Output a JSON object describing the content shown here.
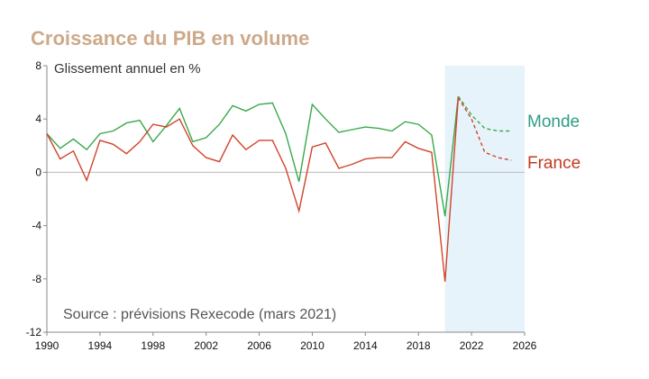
{
  "colors": {
    "title": "#cda98a",
    "monde": "#3aa84b",
    "france": "#d1442a",
    "monde_label": "#2e9e85",
    "france_label": "#c23a24",
    "forecast_shade": "#e7f3fb",
    "axis": "#888888",
    "zero_line": "#bbbbbb"
  },
  "chart_data": {
    "type": "line",
    "title": "Croissance du PIB en volume",
    "subtitle": "Glissement annuel en %",
    "source": "Source : prévisions Rexecode (mars 2021)",
    "xlim": [
      1990,
      2026
    ],
    "ylim": [
      -12,
      8
    ],
    "x_ticks": [
      1990,
      1994,
      1998,
      2002,
      2006,
      2010,
      2014,
      2018,
      2022,
      2026
    ],
    "y_ticks": [
      8,
      4,
      0,
      -4,
      -8,
      -12
    ],
    "forecast_region": [
      2020,
      2026
    ],
    "series": [
      {
        "name": "Monde",
        "actual": {
          "x": [
            1990,
            1991,
            1992,
            1993,
            1994,
            1995,
            1996,
            1997,
            1998,
            1999,
            2000,
            2001,
            2002,
            2003,
            2004,
            2005,
            2006,
            2007,
            2008,
            2009,
            2010,
            2011,
            2012,
            2013,
            2014,
            2015,
            2016,
            2017,
            2018,
            2019,
            2020,
            2021
          ],
          "y": [
            2.9,
            1.8,
            2.5,
            1.7,
            2.9,
            3.1,
            3.7,
            3.9,
            2.3,
            3.5,
            4.8,
            2.3,
            2.6,
            3.6,
            5.0,
            4.6,
            5.1,
            5.2,
            2.9,
            -0.7,
            5.1,
            4.0,
            3.0,
            3.2,
            3.4,
            3.3,
            3.1,
            3.8,
            3.6,
            2.8,
            -3.3,
            5.7
          ]
        },
        "forecast": {
          "x": [
            2021,
            2022,
            2023,
            2024,
            2025
          ],
          "y": [
            5.7,
            4.3,
            3.3,
            3.1,
            3.1
          ]
        }
      },
      {
        "name": "France",
        "actual": {
          "x": [
            1990,
            1991,
            1992,
            1993,
            1994,
            1995,
            1996,
            1997,
            1998,
            1999,
            2000,
            2001,
            2002,
            2003,
            2004,
            2005,
            2006,
            2007,
            2008,
            2009,
            2010,
            2011,
            2012,
            2013,
            2014,
            2015,
            2016,
            2017,
            2018,
            2019,
            2020,
            2021
          ],
          "y": [
            2.9,
            1.0,
            1.6,
            -0.6,
            2.4,
            2.1,
            1.4,
            2.3,
            3.6,
            3.4,
            4.0,
            2.0,
            1.1,
            0.8,
            2.8,
            1.7,
            2.4,
            2.4,
            0.3,
            -2.9,
            1.9,
            2.2,
            0.3,
            0.6,
            1.0,
            1.1,
            1.1,
            2.3,
            1.8,
            1.5,
            -8.2,
            5.6
          ]
        },
        "forecast": {
          "x": [
            2021,
            2022,
            2023,
            2024,
            2025
          ],
          "y": [
            5.6,
            4.0,
            1.5,
            1.1,
            0.9
          ]
        }
      }
    ]
  }
}
